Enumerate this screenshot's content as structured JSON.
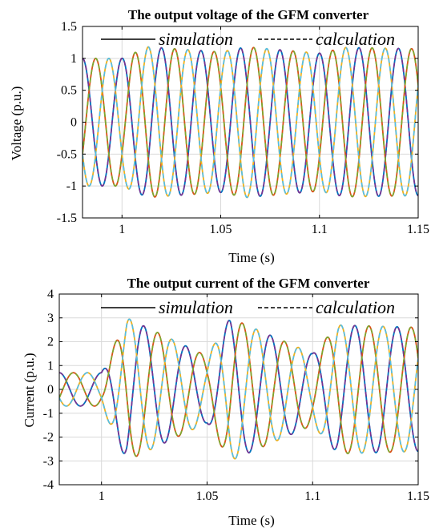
{
  "chart_data": [
    {
      "type": "line",
      "title": "The output voltage of the GFM converter",
      "xlabel": "Time (s)",
      "ylabel": "Voltage (p.u.)",
      "xlim": [
        0.98,
        1.15
      ],
      "ylim": [
        -1.5,
        1.5
      ],
      "xticks": [
        "1",
        "1.05",
        "1.1",
        "1.15"
      ],
      "xtick_values": [
        1,
        1.05,
        1.1,
        1.15
      ],
      "yticks": [
        "1.5",
        "1",
        "0.5",
        "0",
        "-0.5",
        "-1",
        "-1.5"
      ],
      "ytick_values": [
        1.5,
        1,
        0.5,
        0,
        -0.5,
        -1,
        -1.5
      ],
      "grid": true,
      "legend": {
        "placement": "top",
        "entries": [
          {
            "label": "simulation",
            "style": "solid"
          },
          {
            "label": "calculation",
            "style": "dashed"
          }
        ]
      },
      "signal": {
        "frequency_hz": 50,
        "phases_deg": [
          0,
          -120,
          120
        ],
        "amplitude": [
          [
            0.98,
            1.0
          ],
          [
            1.0,
            1.0
          ],
          [
            1.013,
            1.18
          ],
          [
            1.05,
            1.1
          ],
          [
            1.063,
            1.18
          ],
          [
            1.1,
            1.08
          ],
          [
            1.113,
            1.17
          ],
          [
            1.15,
            1.15
          ]
        ]
      },
      "series": [
        {
          "phase": "a",
          "simulation_color": "#0072bd",
          "calculation_color": "#7e2f8e"
        },
        {
          "phase": "b",
          "simulation_color": "#d95319",
          "calculation_color": "#77ac30"
        },
        {
          "phase": "c",
          "simulation_color": "#edb120",
          "calculation_color": "#4dbeee"
        }
      ]
    },
    {
      "type": "line",
      "title": "The output current of the GFM converter",
      "xlabel": "Time (s)",
      "ylabel": "Current (p.u.)",
      "xlim": [
        0.98,
        1.15
      ],
      "ylim": [
        -4,
        4
      ],
      "xticks": [
        "1",
        "1.05",
        "1.1",
        "1.15"
      ],
      "xtick_values": [
        1,
        1.05,
        1.1,
        1.15
      ],
      "yticks": [
        "4",
        "3",
        "2",
        "1",
        "0",
        "-1",
        "-2",
        "-3",
        "-4"
      ],
      "ytick_values": [
        4,
        3,
        2,
        1,
        0,
        -1,
        -2,
        -3,
        -4
      ],
      "grid": true,
      "legend": {
        "placement": "top",
        "entries": [
          {
            "label": "simulation",
            "style": "solid"
          },
          {
            "label": "calculation",
            "style": "dashed"
          }
        ]
      },
      "signal": {
        "frequency_hz": 50,
        "phases_deg": [
          0,
          -120,
          120
        ],
        "amplitude": [
          [
            0.98,
            0.7
          ],
          [
            1.0,
            0.7
          ],
          [
            1.012,
            3.0
          ],
          [
            1.05,
            1.4
          ],
          [
            1.061,
            3.0
          ],
          [
            1.1,
            1.5
          ],
          [
            1.112,
            2.7
          ],
          [
            1.15,
            2.6
          ]
        ]
      },
      "series": [
        {
          "phase": "a",
          "simulation_color": "#0072bd",
          "calculation_color": "#7e2f8e"
        },
        {
          "phase": "b",
          "simulation_color": "#d95319",
          "calculation_color": "#77ac30"
        },
        {
          "phase": "c",
          "simulation_color": "#edb120",
          "calculation_color": "#4dbeee"
        }
      ]
    }
  ]
}
